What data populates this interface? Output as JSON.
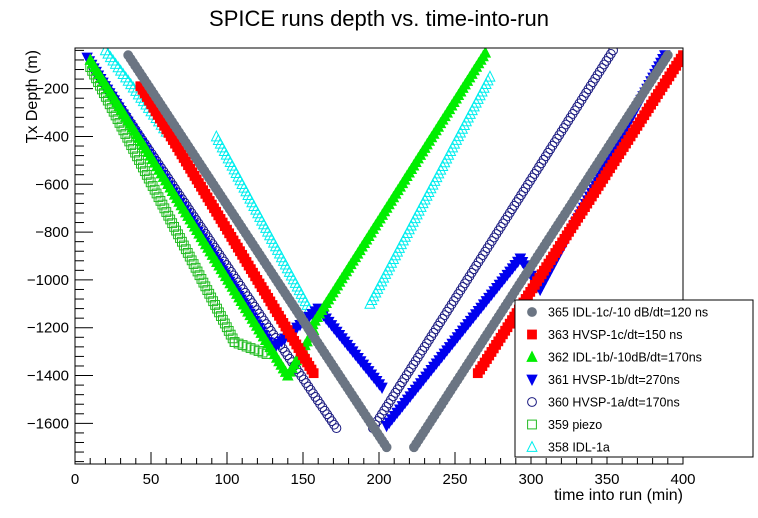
{
  "chart_data": {
    "type": "scatter",
    "title": "SPICE runs depth vs. time-into-run",
    "xlabel": "time into run (min)",
    "ylabel": "Tx Depth (m)",
    "xlim": [
      0,
      400
    ],
    "ylim": [
      -1770,
      -30
    ],
    "x_ticks": [
      0,
      50,
      100,
      150,
      200,
      250,
      300,
      350,
      400
    ],
    "x_tick_labels": [
      "0",
      "50",
      "100",
      "150",
      "200",
      "250",
      "300",
      "350",
      "400"
    ],
    "y_ticks": [
      -200,
      -400,
      -600,
      -800,
      -1000,
      -1200,
      -1400,
      -1600
    ],
    "y_tick_labels": [
      "−200",
      "−400",
      "−600",
      "−800",
      "−1000",
      "−1200",
      "−1400",
      "−1600"
    ],
    "grid": false,
    "legend_position": "bottom-right",
    "series": [
      {
        "name": "365 IDL-1c/-10 dB/dt=120 ns",
        "color": "#6b7583",
        "marker": "circle-filled",
        "segments": [
          [
            [
              35,
              -60
            ],
            [
              205,
              -1700
            ]
          ],
          [
            [
              223,
              -1700
            ],
            [
              390,
              -60
            ]
          ]
        ]
      },
      {
        "name": "363 HVSP-1c/dt=150 ns",
        "color": "#ff0000",
        "marker": "square-filled",
        "segments": [
          [
            [
              43,
              -190
            ],
            [
              157,
              -1390
            ]
          ],
          [
            [
              265,
              -1390
            ],
            [
              400,
              -60
            ]
          ]
        ]
      },
      {
        "name": "362 IDL-1b/-10dB/dt=170ns",
        "color": "#00ee00",
        "marker": "triangle-up-filled",
        "segments": [
          [
            [
              10,
              -80
            ],
            [
              140,
              -1400
            ]
          ],
          [
            [
              140,
              -1400
            ],
            [
              157,
              -1210
            ]
          ],
          [
            [
              155,
              -1200
            ],
            [
              270,
              -50
            ]
          ]
        ]
      },
      {
        "name": "361 HVSP-1b/dt=270ns",
        "color": "#0000ee",
        "marker": "triangle-down-filled",
        "segments": [
          [
            [
              8,
              -70
            ],
            [
              130,
              -1290
            ]
          ],
          [
            [
              130,
              -1290
            ],
            [
              160,
              -1120
            ]
          ],
          [
            [
              160,
              -1120
            ],
            [
              202,
              -1450
            ]
          ],
          [
            [
              205,
              -1610
            ],
            [
              293,
              -910
            ]
          ],
          [
            [
              293,
              -910
            ],
            [
              306,
              -1040
            ]
          ],
          [
            [
              306,
              -1040
            ],
            [
              388,
              -60
            ]
          ]
        ]
      },
      {
        "name": "360 HVSP-1a/dt=170ns",
        "color": "#1a1a80",
        "marker": "circle-open",
        "segments": [
          [
            [
              12,
              -110
            ],
            [
              172,
              -1620
            ]
          ],
          [
            [
              196,
              -1620
            ],
            [
              354,
              -40
            ]
          ]
        ]
      },
      {
        "name": "359 piezo",
        "color": "#22bb22",
        "marker": "square-open",
        "segments": [
          [
            [
              10,
              -110
            ],
            [
              105,
              -1260
            ]
          ],
          [
            [
              105,
              -1260
            ],
            [
              126,
              -1310
            ]
          ]
        ]
      },
      {
        "name": "358 IDL-1a",
        "color": "#00eeee",
        "marker": "triangle-up-open",
        "segments": [
          [
            [
              20,
              -40
            ],
            [
              60,
              -380
            ]
          ],
          [
            [
              93,
              -400
            ],
            [
              154,
              -1120
            ]
          ],
          [
            [
              194,
              -1100
            ],
            [
              273,
              -150
            ]
          ]
        ]
      }
    ]
  }
}
